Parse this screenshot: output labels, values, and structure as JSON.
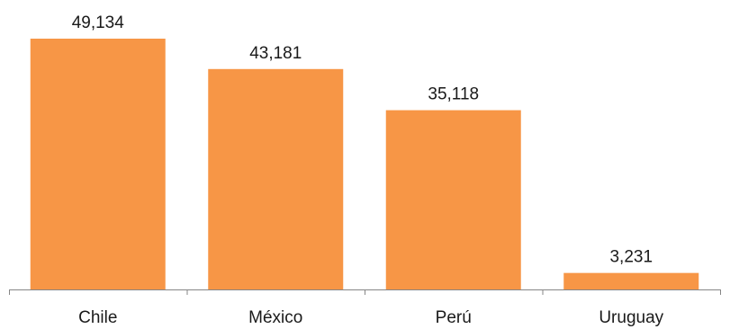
{
  "chart_data": {
    "type": "bar",
    "categories": [
      "Chile",
      "México",
      "Perú",
      "Uruguay"
    ],
    "values": [
      49134,
      43181,
      35118,
      3231
    ],
    "value_labels": [
      "49,134",
      "43,181",
      "35,118",
      "3,231"
    ],
    "title": "",
    "xlabel": "",
    "ylabel": "",
    "ylim": [
      0,
      49134
    ],
    "grid": false,
    "legend": "none",
    "bar_color": "#F79646",
    "axis_color": "#868686"
  }
}
